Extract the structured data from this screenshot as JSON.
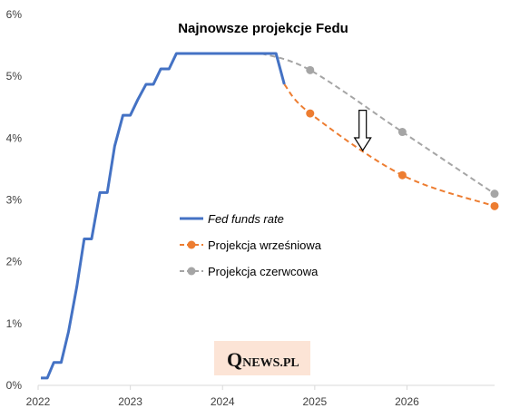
{
  "chart_data": {
    "type": "line",
    "title": "Najnowsze projekcje Fedu",
    "xlabel": "",
    "ylabel": "",
    "xlim": [
      2022.0,
      2026.95
    ],
    "ylim": [
      0,
      6
    ],
    "x_ticks": [
      {
        "value": 2022,
        "label": "2022"
      },
      {
        "value": 2023,
        "label": "2023"
      },
      {
        "value": 2024,
        "label": "2024"
      },
      {
        "value": 2025,
        "label": "2025"
      },
      {
        "value": 2026,
        "label": "2026"
      }
    ],
    "y_ticks": [
      {
        "value": 0,
        "label": "0%"
      },
      {
        "value": 1,
        "label": "1%"
      },
      {
        "value": 2,
        "label": "2%"
      },
      {
        "value": 3,
        "label": "3%"
      },
      {
        "value": 4,
        "label": "4%"
      },
      {
        "value": 5,
        "label": "5%"
      },
      {
        "value": 6,
        "label": "6%"
      }
    ],
    "grid": false,
    "legend_position": "center-left",
    "series": [
      {
        "name": "Fed funds rate",
        "color": "#4472C4",
        "style": "solid",
        "markers": false,
        "x": [
          2022.03,
          2022.1,
          2022.17,
          2022.25,
          2022.33,
          2022.42,
          2022.5,
          2022.58,
          2022.67,
          2022.75,
          2022.83,
          2022.92,
          2023.0,
          2023.08,
          2023.17,
          2023.25,
          2023.33,
          2023.42,
          2023.5,
          2023.58,
          2023.67,
          2023.75,
          2023.83,
          2023.92,
          2024.0,
          2024.08,
          2024.17,
          2024.25,
          2024.33,
          2024.42,
          2024.5,
          2024.58,
          2024.67
        ],
        "y": [
          0.12,
          0.12,
          0.37,
          0.37,
          0.87,
          1.6,
          2.37,
          2.37,
          3.12,
          3.12,
          3.87,
          4.37,
          4.37,
          4.62,
          4.87,
          4.87,
          5.12,
          5.12,
          5.37,
          5.37,
          5.37,
          5.37,
          5.37,
          5.37,
          5.37,
          5.37,
          5.37,
          5.37,
          5.37,
          5.37,
          5.37,
          5.37,
          4.87
        ]
      },
      {
        "name": "Projekcja wrześniowa",
        "color": "#ED7D31",
        "style": "dashed",
        "markers": true,
        "x": [
          2024.67,
          2024.95,
          2025.95,
          2026.95
        ],
        "y": [
          4.87,
          4.4,
          3.4,
          2.9
        ],
        "marked": [
          false,
          true,
          true,
          true
        ]
      },
      {
        "name": "Projekcja czerwcowa",
        "color": "#A5A5A5",
        "style": "dashed",
        "markers": true,
        "x": [
          2024.42,
          2024.95,
          2025.95,
          2026.95
        ],
        "y": [
          5.37,
          5.1,
          4.1,
          3.1
        ],
        "marked": [
          false,
          true,
          true,
          true
        ]
      }
    ],
    "annotations": [
      {
        "type": "arrow-down",
        "x": 2025.52,
        "y_from": 4.45,
        "y_to": 3.8
      }
    ],
    "watermark": {
      "big": "Q",
      "small": "NEWS.PL",
      "background": "#FCE4D6"
    }
  }
}
